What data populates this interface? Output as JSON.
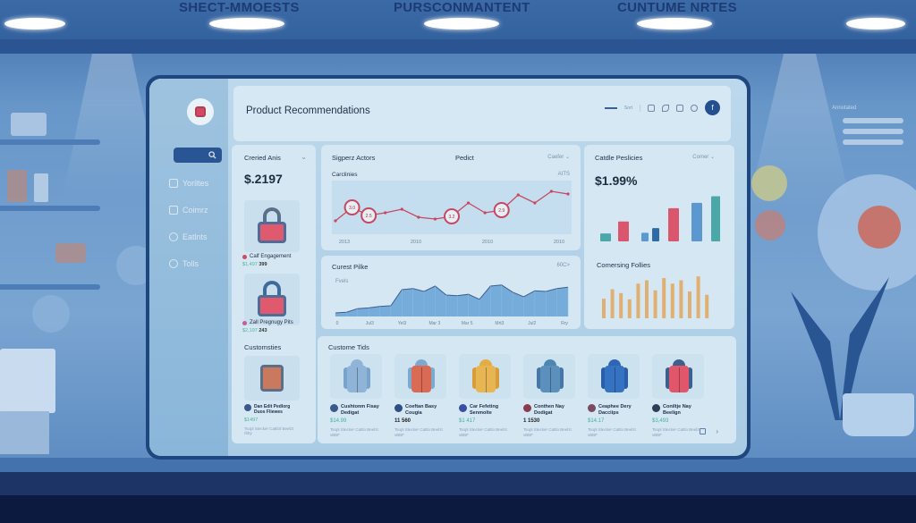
{
  "storefront": {
    "signs": [
      "SHECT-MMOESTS",
      "PURSCONMANTENT",
      "CUNTUME NRTES"
    ],
    "wall_right_label": "Annotated"
  },
  "app": {
    "title": "Product Recommendations",
    "header_tools": {
      "slider_label": "Sort",
      "icons": [
        "panel-icon",
        "attach-icon",
        "clipboard-icon",
        "chat-icon"
      ],
      "avatar_letter": "f"
    },
    "sidebar": {
      "search_icon": "search-icon",
      "items": [
        {
          "label": "Yoriltes",
          "icon": "calendar-icon"
        },
        {
          "label": "Coimrz",
          "icon": "folder-icon"
        },
        {
          "label": "Eatlnts",
          "icon": "clock-icon"
        },
        {
          "label": "Tolls",
          "icon": "gear-icon"
        }
      ]
    }
  },
  "cards": {
    "created": {
      "title": "Creried Anis",
      "value": "$.2197",
      "products": [
        {
          "name": "Calf Engagement",
          "price_green": "$1,497",
          "price_dark": "399"
        },
        {
          "name": "Zall Pregnugy Pits",
          "price_green": "$2,197",
          "price_dark": "243"
        }
      ],
      "section2_title": "Customsties",
      "section2_item": {
        "name": "Dan Edit Pedlorg",
        "sub": "Duos Fliewes",
        "price": "$1497",
        "desc": "Tsopl Stecker Cattlof Beelzt rbby"
      }
    },
    "sales": {
      "title": "Sigperz Actors",
      "center_label": "Pedict",
      "dropdown": "Caefer",
      "subtitle": "Carclinies",
      "right_label": "AITS"
    },
    "cattle": {
      "title": "Catdle Peslicies",
      "dropdown": "Comer",
      "value": "$1.99%",
      "section2_title": "Comersing Follies"
    },
    "current": {
      "title": "Curest Pilke",
      "right_label": "60C>",
      "ylabel": "Fvels"
    },
    "customer": {
      "title": "Custome Tids",
      "products": [
        {
          "name": "Cushtonm Fisay Dedigat",
          "price": "$14.99",
          "price_dark": false,
          "desc": "Tsopl Stecker Cattlo Beelzt vBBF",
          "colors": [
            "#8fb4d8",
            "#8fb4d8",
            "#7aa3cb"
          ],
          "avatar": "#3a5a8c"
        },
        {
          "name": "Coeftan Basy Cougia",
          "price": "11 560",
          "price_dark": true,
          "desc": "Tsopl Stecker Cattlo Beelzt vBBF",
          "colors": [
            "#7fa8d0",
            "#d96b55",
            "#7fa8d0"
          ],
          "avatar": "#2e4f85"
        },
        {
          "name": "Car Fefeting Senmolte",
          "price": "$1 417",
          "price_dark": false,
          "desc": "Tsopl Stecker Cattlo Beelzt vBBF",
          "colors": [
            "#e3ac45",
            "#e8b553",
            "#d99c3b"
          ],
          "avatar": "#3b4fa0"
        },
        {
          "name": "Conthen Nay Dodigat",
          "price": "1 1530",
          "price_dark": true,
          "desc": "Tsopl Stecker Cattlo Beelzt vBBF",
          "colors": [
            "#4f85b2",
            "#5b8fbc",
            "#4677a6"
          ],
          "avatar": "#8a3c4d"
        },
        {
          "name": "Ceaphee Dery Dacciips",
          "price": "$14.17",
          "price_dark": false,
          "desc": "Tsopl Stecker Cattlo Beelzt vBBF",
          "colors": [
            "#2e66b5",
            "#3572c2",
            "#2a5ea8"
          ],
          "avatar": "#7a4a60"
        },
        {
          "name": "Coniltje Nay Beelign",
          "price": "$3,493",
          "price_dark": false,
          "desc": "Tsopl Stecker Cattlo Beelzt vBBF",
          "colors": [
            "#3e5e8c",
            "#e0566b",
            "#3e5e8c"
          ],
          "avatar": "#2c3e5a"
        }
      ],
      "footer_icons": [
        "grid-icon",
        "next-icon"
      ]
    }
  },
  "chart_data": [
    {
      "type": "line",
      "title": "Sigperz Actors",
      "subtitle": "Carclinies",
      "x_ticks": [
        "2013",
        "2010",
        "2010",
        "2010"
      ],
      "values": [
        22,
        52,
        34,
        40,
        48,
        30,
        26,
        32,
        62,
        40,
        46,
        80,
        62,
        88,
        82
      ],
      "highlighted_points": [
        {
          "index": 1,
          "label": "3.0"
        },
        {
          "index": 2,
          "label": "2.5"
        },
        {
          "index": 7,
          "label": "3.2"
        },
        {
          "index": 10,
          "label": "2.9"
        }
      ],
      "ylim": [
        0,
        100
      ],
      "color": "#c8475f"
    },
    {
      "type": "bar",
      "title": "Catdle Peslicies",
      "headline": "$1.99%",
      "values": [
        12,
        30,
        13,
        20,
        50,
        58,
        68
      ],
      "colors": [
        "#4aa9a8",
        "#d9566d",
        "#5b98cf",
        "#2f6aa6",
        "#d9566d",
        "#5b98cf",
        "#4aa9a8"
      ],
      "ylim": [
        0,
        70
      ]
    },
    {
      "type": "area",
      "title": "Curest Pilke",
      "ylabel": "Fvels",
      "x_ticks": [
        "0",
        "Jul3",
        "Yel3",
        "Mar 3",
        "Mar 5",
        "Mrt3",
        "Jul2",
        "Rry"
      ],
      "values": [
        10,
        12,
        22,
        24,
        28,
        30,
        75,
        78,
        70,
        85,
        60,
        58,
        62,
        48,
        85,
        88,
        68,
        55,
        72,
        70,
        78,
        82
      ],
      "ylim": [
        0,
        100
      ],
      "color": "#6aa5d6"
    },
    {
      "type": "bar",
      "title": "Comersing Follies",
      "values": [
        35,
        52,
        45,
        34,
        62,
        68,
        50,
        72,
        62,
        68,
        48,
        75,
        42
      ],
      "color": "#e0b072",
      "ylim": [
        0,
        80
      ]
    }
  ]
}
